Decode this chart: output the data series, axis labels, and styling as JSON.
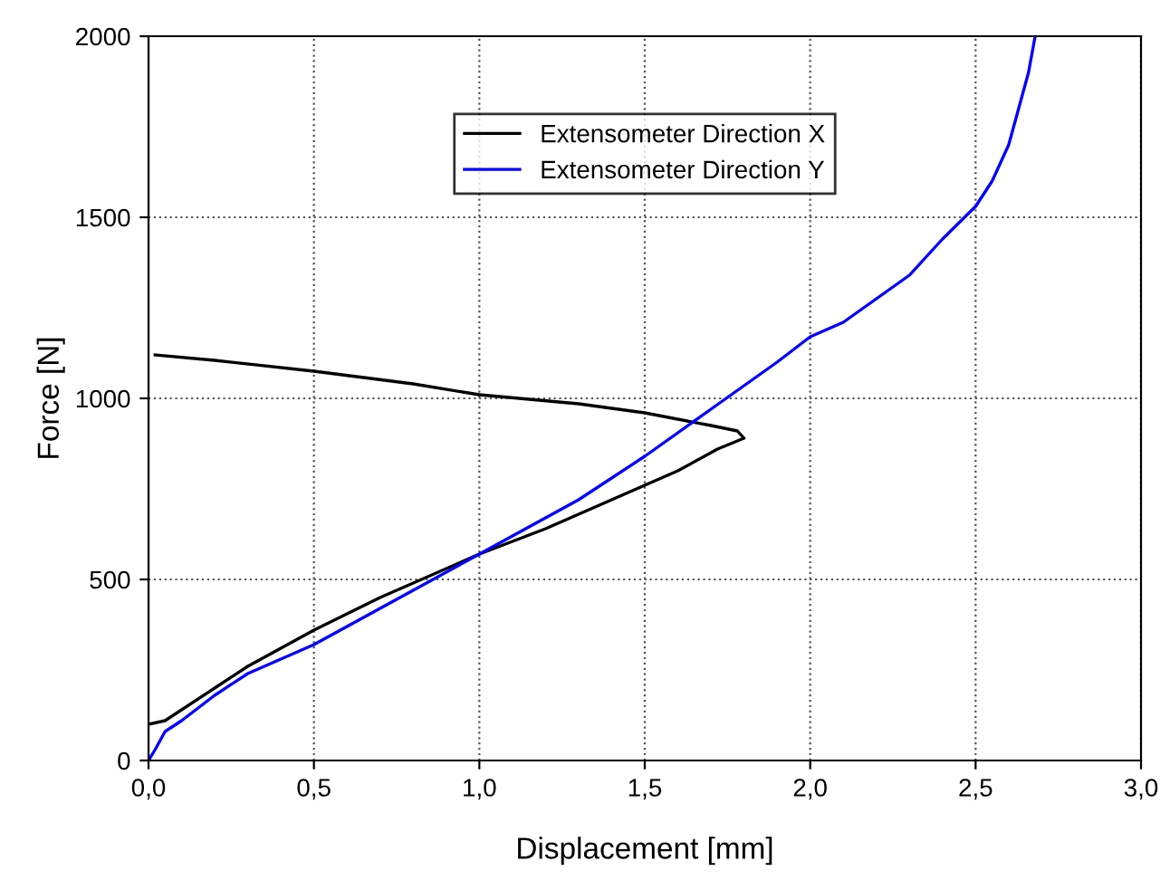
{
  "chart_data": {
    "type": "line",
    "xlabel": "Displacement [mm]",
    "ylabel": "Force [N]",
    "xlim": [
      0,
      3.0
    ],
    "ylim": [
      0,
      2000
    ],
    "xticks": [
      {
        "value": 0,
        "label": "0,0"
      },
      {
        "value": 0.5,
        "label": "0,5"
      },
      {
        "value": 1.0,
        "label": "1,0"
      },
      {
        "value": 1.5,
        "label": "1,5"
      },
      {
        "value": 2.0,
        "label": "2,0"
      },
      {
        "value": 2.5,
        "label": "2,5"
      },
      {
        "value": 3.0,
        "label": "3,0"
      }
    ],
    "yticks": [
      0,
      500,
      1000,
      1500,
      2000
    ],
    "grid": true,
    "legend": "top center",
    "line_style": "solid",
    "marker": "none",
    "series": [
      {
        "name": "Extensometer Direction X",
        "color": "#000000",
        "x": [
          0,
          0.05,
          0.2,
          0.3,
          0.5,
          0.7,
          1.0,
          1.2,
          1.4,
          1.6,
          1.72,
          1.8,
          1.78,
          1.7,
          1.5,
          1.3,
          1.0,
          0.8,
          0.5,
          0.2,
          0.02
        ],
        "values": [
          100,
          110,
          200,
          260,
          360,
          450,
          570,
          640,
          720,
          800,
          860,
          890,
          910,
          925,
          960,
          985,
          1010,
          1040,
          1075,
          1105,
          1120
        ]
      },
      {
        "name": "Extensometer Direction Y",
        "color": "#0000ff",
        "x": [
          0,
          0.02,
          0.05,
          0.1,
          0.2,
          0.3,
          0.5,
          0.7,
          1.0,
          1.3,
          1.5,
          1.7,
          1.9,
          2.0,
          2.1,
          2.3,
          2.4,
          2.5,
          2.55,
          2.6,
          2.63,
          2.66,
          2.68
        ],
        "values": [
          0,
          30,
          80,
          110,
          180,
          240,
          320,
          420,
          570,
          720,
          840,
          970,
          1100,
          1170,
          1210,
          1340,
          1440,
          1530,
          1600,
          1700,
          1800,
          1900,
          2000
        ]
      }
    ]
  }
}
